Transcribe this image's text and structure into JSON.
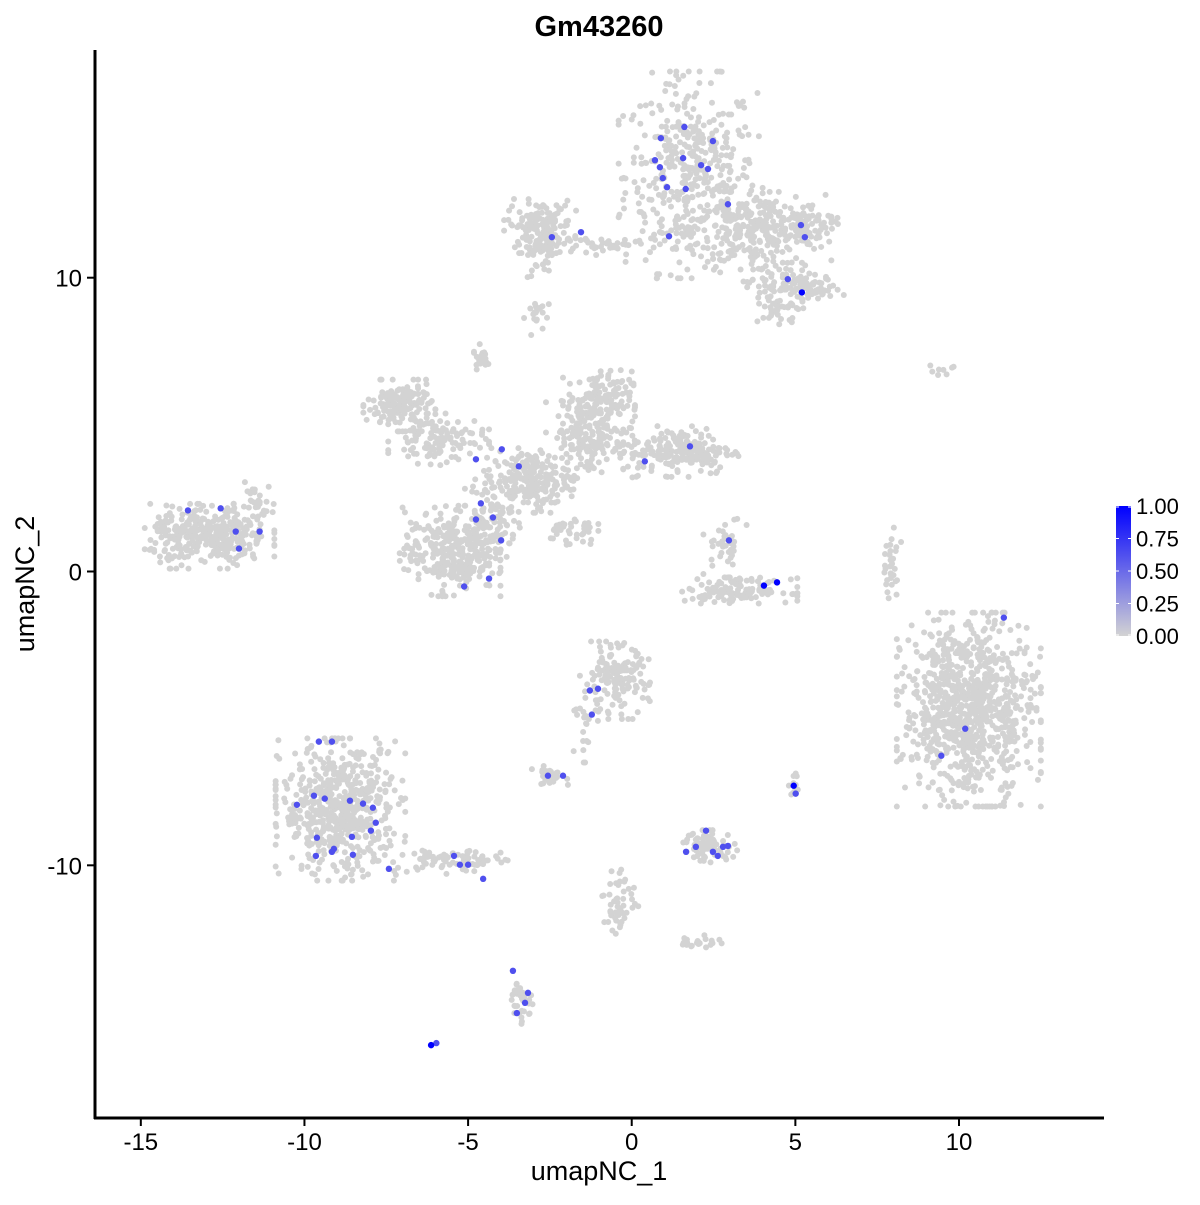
{
  "chart_data": {
    "type": "scatter",
    "title": "Gm43260",
    "xlabel": "umapNC_1",
    "ylabel": "umapNC_2",
    "xlim": [
      -16.4,
      14.4
    ],
    "ylim": [
      -18.6,
      17.75
    ],
    "x_ticks": [
      -15,
      -10,
      -5,
      0,
      5,
      10
    ],
    "y_ticks": [
      -10,
      0,
      10
    ],
    "x_tick_labels": [
      "-15",
      "-10",
      "-5",
      "0",
      "5",
      "10"
    ],
    "y_tick_labels": [
      "-10",
      "0",
      "10"
    ],
    "grid": false,
    "color_scale": {
      "low": "#D3D3D3",
      "high": "#0000FF",
      "range": [
        0,
        1
      ]
    },
    "legend": {
      "placement": "right",
      "labels": [
        "1.00",
        "0.75",
        "0.50",
        "0.25",
        "0.00"
      ],
      "values": [
        1,
        0.75,
        0.5,
        0.25,
        0
      ]
    },
    "background_clusters": [
      {
        "cx": 1.8,
        "cy": 13.5,
        "sx": 1.0,
        "sy": 1.6,
        "n": 420
      },
      {
        "cx": 3.9,
        "cy": 11.6,
        "sx": 1.0,
        "sy": 0.6,
        "n": 260
      },
      {
        "cx": 5.2,
        "cy": 11.8,
        "sx": 0.5,
        "sy": 0.3,
        "n": 80
      },
      {
        "cx": 4.5,
        "cy": 9.7,
        "sx": 0.5,
        "sy": 0.4,
        "n": 80
      },
      {
        "cx": 5.6,
        "cy": 9.6,
        "sx": 0.4,
        "sy": 0.2,
        "n": 50
      },
      {
        "cx": 4.5,
        "cy": 8.9,
        "sx": 0.3,
        "sy": 0.3,
        "n": 30
      },
      {
        "cx": -2.8,
        "cy": 11.8,
        "sx": 0.5,
        "sy": 0.4,
        "n": 120
      },
      {
        "cx": -0.8,
        "cy": 11.1,
        "sx": 1.2,
        "sy": 0.15,
        "n": 60
      },
      {
        "cx": -2.8,
        "cy": 10.9,
        "sx": 0.3,
        "sy": 0.4,
        "n": 40
      },
      {
        "cx": -2.85,
        "cy": 8.7,
        "sx": 0.2,
        "sy": 0.3,
        "n": 20
      },
      {
        "cx": -7.1,
        "cy": 5.65,
        "sx": 0.5,
        "sy": 0.4,
        "n": 150
      },
      {
        "cx": -5.9,
        "cy": 4.5,
        "sx": 0.7,
        "sy": 0.4,
        "n": 120
      },
      {
        "cx": -1.0,
        "cy": 5.8,
        "sx": 0.5,
        "sy": 0.5,
        "n": 150
      },
      {
        "cx": 1.5,
        "cy": 4.1,
        "sx": 0.8,
        "sy": 0.4,
        "n": 200
      },
      {
        "cx": -1.3,
        "cy": 4.5,
        "sx": 0.6,
        "sy": 0.6,
        "n": 150
      },
      {
        "cx": -3.1,
        "cy": 3.1,
        "sx": 0.6,
        "sy": 0.5,
        "n": 200
      },
      {
        "cx": -5.55,
        "cy": 0.7,
        "sx": 0.7,
        "sy": 0.7,
        "n": 300
      },
      {
        "cx": -4.3,
        "cy": 1.7,
        "sx": 0.4,
        "sy": 0.8,
        "n": 120
      },
      {
        "cx": -4.6,
        "cy": 7.3,
        "sx": 0.1,
        "sy": 0.2,
        "n": 25
      },
      {
        "cx": -1.9,
        "cy": 1.4,
        "sx": 0.4,
        "sy": 0.25,
        "n": 40
      },
      {
        "cx": -12.9,
        "cy": 1.2,
        "sx": 0.9,
        "sy": 0.5,
        "n": 350
      },
      {
        "cx": -11.5,
        "cy": 2.4,
        "sx": 0.3,
        "sy": 0.3,
        "n": 30
      },
      {
        "cx": 3.3,
        "cy": -0.65,
        "sx": 0.8,
        "sy": 0.2,
        "n": 120
      },
      {
        "cx": 2.85,
        "cy": 0.9,
        "sx": 0.3,
        "sy": 0.5,
        "n": 40
      },
      {
        "cx": 10.3,
        "cy": -4.7,
        "sx": 1.0,
        "sy": 1.5,
        "n": 900
      },
      {
        "cx": 7.9,
        "cy": 0.2,
        "sx": 0.15,
        "sy": 0.6,
        "n": 30
      },
      {
        "cx": -0.5,
        "cy": -3.7,
        "sx": 0.5,
        "sy": 0.6,
        "n": 150
      },
      {
        "cx": -1.4,
        "cy": -5.4,
        "sx": 0.2,
        "sy": 0.5,
        "n": 20
      },
      {
        "cx": -8.9,
        "cy": -8.1,
        "sx": 0.9,
        "sy": 1.1,
        "n": 600
      },
      {
        "cx": -5.55,
        "cy": -9.85,
        "sx": 0.8,
        "sy": 0.2,
        "n": 80
      },
      {
        "cx": -2.5,
        "cy": -6.95,
        "sx": 0.25,
        "sy": 0.15,
        "n": 30
      },
      {
        "cx": 2.35,
        "cy": -9.35,
        "sx": 0.4,
        "sy": 0.25,
        "n": 70
      },
      {
        "cx": -0.35,
        "cy": -11.2,
        "sx": 0.25,
        "sy": 0.6,
        "n": 50
      },
      {
        "cx": 2.1,
        "cy": -12.6,
        "sx": 0.3,
        "sy": 0.1,
        "n": 25
      },
      {
        "cx": -3.4,
        "cy": -14.6,
        "sx": 0.2,
        "sy": 0.4,
        "n": 35
      },
      {
        "cx": 5.0,
        "cy": -7.3,
        "sx": 0.1,
        "sy": 0.2,
        "n": 10
      },
      {
        "cx": 9.4,
        "cy": 6.8,
        "sx": 0.3,
        "sy": 0.1,
        "n": 8
      }
    ],
    "expressed_points": [
      [
        0.89,
        14.75,
        0.6
      ],
      [
        1.61,
        15.13,
        0.6
      ],
      [
        2.48,
        14.65,
        0.6
      ],
      [
        0.71,
        14.0,
        0.6
      ],
      [
        1.57,
        14.07,
        0.6
      ],
      [
        2.12,
        13.83,
        0.6
      ],
      [
        0.86,
        13.76,
        0.6
      ],
      [
        2.33,
        13.7,
        0.6
      ],
      [
        0.95,
        13.39,
        0.6
      ],
      [
        1.08,
        13.08,
        0.6
      ],
      [
        1.65,
        13.02,
        0.6
      ],
      [
        2.94,
        12.5,
        0.6
      ],
      [
        5.17,
        11.79,
        0.6
      ],
      [
        5.29,
        11.38,
        0.6
      ],
      [
        1.14,
        11.41,
        0.6
      ],
      [
        -1.55,
        11.55,
        0.6
      ],
      [
        -2.44,
        11.38,
        0.6
      ],
      [
        4.77,
        9.95,
        0.6
      ],
      [
        5.2,
        9.5,
        1.0
      ],
      [
        1.78,
        4.26,
        0.6
      ],
      [
        0.4,
        3.75,
        0.6
      ],
      [
        -3.45,
        3.58,
        0.6
      ],
      [
        -3.97,
        4.16,
        0.6
      ],
      [
        -4.76,
        3.82,
        0.6
      ],
      [
        -4.61,
        2.32,
        0.6
      ],
      [
        -4.76,
        1.77,
        0.6
      ],
      [
        -4.24,
        1.84,
        0.6
      ],
      [
        -3.99,
        1.06,
        0.6
      ],
      [
        -4.36,
        -0.24,
        0.6
      ],
      [
        -5.12,
        -0.51,
        0.6
      ],
      [
        -13.56,
        2.08,
        0.6
      ],
      [
        -12.56,
        2.15,
        0.6
      ],
      [
        -12.1,
        1.36,
        0.6
      ],
      [
        -11.37,
        1.36,
        0.6
      ],
      [
        -12.0,
        0.78,
        0.6
      ],
      [
        2.97,
        1.06,
        0.6
      ],
      [
        4.04,
        -0.48,
        1.0
      ],
      [
        4.44,
        -0.37,
        1.0
      ],
      [
        11.37,
        -1.57,
        0.6
      ],
      [
        10.19,
        -5.35,
        0.6
      ],
      [
        9.46,
        -6.27,
        0.6
      ],
      [
        -1.03,
        -3.99,
        0.6
      ],
      [
        -1.28,
        -4.05,
        0.6
      ],
      [
        -1.22,
        -4.87,
        0.6
      ],
      [
        -2.56,
        -6.95,
        0.6
      ],
      [
        -2.1,
        -6.95,
        0.6
      ],
      [
        4.95,
        -7.29,
        1.0
      ],
      [
        5.01,
        -7.56,
        0.6
      ],
      [
        -9.56,
        -5.79,
        0.6
      ],
      [
        -9.16,
        -5.79,
        0.6
      ],
      [
        -10.23,
        -7.94,
        0.6
      ],
      [
        -9.71,
        -7.63,
        0.6
      ],
      [
        -9.38,
        -7.73,
        0.6
      ],
      [
        -8.61,
        -7.8,
        0.6
      ],
      [
        -8.21,
        -7.9,
        0.6
      ],
      [
        -7.91,
        -8.04,
        0.6
      ],
      [
        -9.62,
        -9.06,
        0.6
      ],
      [
        -7.82,
        -8.55,
        0.6
      ],
      [
        -7.97,
        -8.82,
        0.6
      ],
      [
        -8.55,
        -9.03,
        0.6
      ],
      [
        -9.1,
        -9.44,
        0.6
      ],
      [
        -9.65,
        -9.68,
        0.6
      ],
      [
        -9.16,
        -9.54,
        0.6
      ],
      [
        -8.52,
        -9.64,
        0.6
      ],
      [
        -7.42,
        -10.12,
        0.6
      ],
      [
        -5.43,
        -9.68,
        0.6
      ],
      [
        -5.25,
        -9.98,
        0.6
      ],
      [
        -5.0,
        -9.98,
        0.6
      ],
      [
        -4.54,
        -10.46,
        0.6
      ],
      [
        2.27,
        -8.82,
        0.6
      ],
      [
        1.66,
        -9.54,
        0.6
      ],
      [
        1.96,
        -9.37,
        0.6
      ],
      [
        2.48,
        -9.54,
        0.6
      ],
      [
        2.79,
        -9.37,
        0.6
      ],
      [
        2.63,
        -9.68,
        0.6
      ],
      [
        2.94,
        -9.34,
        0.6
      ],
      [
        -3.63,
        -13.59,
        0.6
      ],
      [
        -3.17,
        -14.34,
        0.6
      ],
      [
        -3.26,
        -14.68,
        0.6
      ],
      [
        -3.51,
        -15.03,
        0.6
      ],
      [
        -6.13,
        -16.12,
        1.0
      ],
      [
        -5.97,
        -16.05,
        0.7
      ]
    ]
  }
}
